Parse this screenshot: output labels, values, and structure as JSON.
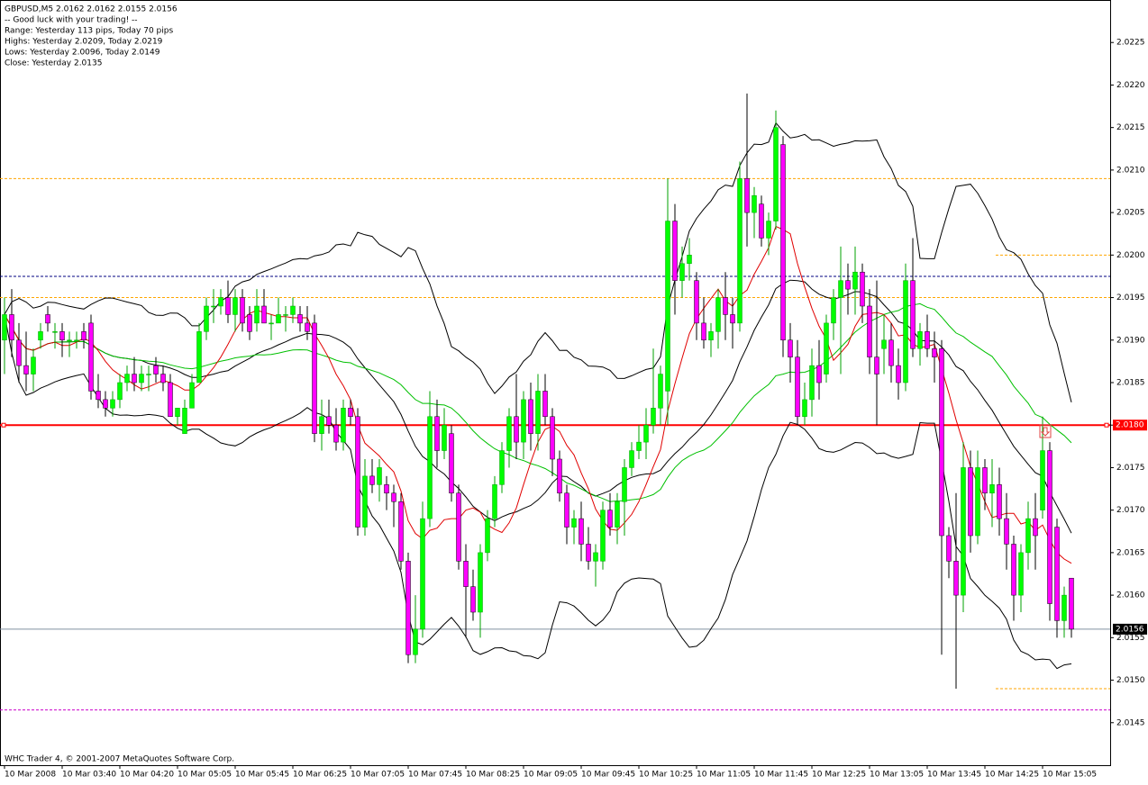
{
  "chart_data": {
    "type": "candlestick",
    "header": [
      "GBPUSD,M5  2.0162 2.0162 2.0155 2.0156",
      "-- Good luck with your trading! --",
      "Range: Yesterday 113 pips, Today 70 pips",
      "Highs: Yesterday 2.0209, Today 2.0219",
      "Lows:  Yesterday 2.0096, Today 2.0149",
      "Close: Yesterday 2.0135"
    ],
    "footer": "WHC Trader 4, © 2001-2007 MetaQuotes Software Corp.",
    "ylim": [
      2.014,
      2.023
    ],
    "yticks": [
      {
        "value": 2.0145,
        "label": "2.0145"
      },
      {
        "value": 2.015,
        "label": "2.0150"
      },
      {
        "value": 2.0155,
        "label": "2.0155"
      },
      {
        "value": 2.016,
        "label": "2.0160"
      },
      {
        "value": 2.0165,
        "label": "2.0165"
      },
      {
        "value": 2.017,
        "label": "2.0170"
      },
      {
        "value": 2.0175,
        "label": "2.0175"
      },
      {
        "value": 2.018,
        "label": "2.0180"
      },
      {
        "value": 2.0185,
        "label": "2.0185"
      },
      {
        "value": 2.019,
        "label": "2.0190"
      },
      {
        "value": 2.0195,
        "label": "2.0195"
      },
      {
        "value": 2.02,
        "label": "2.0200"
      },
      {
        "value": 2.0205,
        "label": "2.0205"
      },
      {
        "value": 2.021,
        "label": "2.0210"
      },
      {
        "value": 2.0215,
        "label": "2.0215"
      },
      {
        "value": 2.022,
        "label": "2.0220"
      },
      {
        "value": 2.0225,
        "label": "2.0225"
      }
    ],
    "levels": [
      {
        "value": 2.0209,
        "color": "#ffa500",
        "style": "dashed"
      },
      {
        "value": 2.0195,
        "color": "#ffa500",
        "style": "dashed"
      },
      {
        "value": 2.02,
        "color": "#ffa500",
        "style": "dashed-short"
      },
      {
        "value": 2.0149,
        "color": "#ffa500",
        "style": "dashed-short"
      },
      {
        "value": 2.01975,
        "color": "#000080",
        "style": "dashed"
      },
      {
        "value": 2.01465,
        "color": "#cc00cc",
        "style": "dashed"
      },
      {
        "value": 2.018,
        "color": "#ff0000",
        "style": "solid",
        "label": "2.0180"
      },
      {
        "value": 2.0156,
        "color": "#8090a0",
        "style": "thin",
        "label": "2.0156"
      }
    ],
    "bull_color": "#00ff00",
    "bear_color": "#ff00ff",
    "categories": [
      "10 Mar 2008",
      null,
      null,
      null,
      null,
      null,
      null,
      null,
      "10 Mar 03:40",
      null,
      null,
      null,
      null,
      null,
      null,
      null,
      "10 Mar 04:20",
      null,
      null,
      null,
      null,
      null,
      null,
      null,
      "10 Mar 05:05",
      null,
      null,
      null,
      null,
      null,
      null,
      null,
      "10 Mar 05:45",
      null,
      null,
      null,
      null,
      null,
      null,
      null,
      "10 Mar 06:25",
      null,
      null,
      null,
      null,
      null,
      null,
      null,
      "10 Mar 07:05",
      null,
      null,
      null,
      null,
      null,
      null,
      null,
      "10 Mar 07:45",
      null,
      null,
      null,
      null,
      null,
      null,
      null,
      "10 Mar 08:25",
      null,
      null,
      null,
      null,
      null,
      null,
      null,
      "10 Mar 09:05",
      null,
      null,
      null,
      null,
      null,
      null,
      null,
      "10 Mar 09:45",
      null,
      null,
      null,
      null,
      null,
      null,
      null,
      "10 Mar 10:25",
      null,
      null,
      null,
      null,
      null,
      null,
      null,
      "10 Mar 11:05",
      null,
      null,
      null,
      null,
      null,
      null,
      null,
      "10 Mar 11:45",
      null,
      null,
      null,
      null,
      null,
      null,
      null,
      "10 Mar 12:25",
      null,
      null,
      null,
      null,
      null,
      null,
      null,
      "10 Mar 13:05",
      null,
      null,
      null,
      null,
      null,
      null,
      null,
      "10 Mar 13:45",
      null,
      null,
      null,
      null,
      null,
      null,
      null,
      "10 Mar 14:25",
      null,
      null,
      null,
      null,
      null,
      null,
      null,
      "10 Mar 15:05",
      null,
      null,
      null,
      null
    ],
    "ohlc": [
      [
        2.019,
        2.0195,
        2.0186,
        2.0193
      ],
      [
        2.0193,
        2.0196,
        2.0188,
        2.019
      ],
      [
        2.019,
        2.0192,
        2.0185,
        2.0187
      ],
      [
        2.0187,
        2.0191,
        2.0184,
        2.0186
      ],
      [
        2.0186,
        2.0189,
        2.0184,
        2.0188
      ],
      [
        2.019,
        2.0192,
        2.0189,
        2.0191
      ],
      [
        2.0193,
        2.0194,
        2.0191,
        2.0192
      ],
      [
        2.0191,
        2.0192,
        2.0189,
        2.0191
      ],
      [
        2.0191,
        2.0192,
        2.0188,
        2.019
      ],
      [
        2.019,
        2.0191,
        2.0188,
        2.019
      ],
      [
        2.019,
        2.0191,
        2.0189,
        2.019
      ],
      [
        2.0191,
        2.0192,
        2.0189,
        2.019
      ],
      [
        2.0192,
        2.0193,
        2.0183,
        2.0184
      ],
      [
        2.0184,
        2.0186,
        2.0182,
        2.0183
      ],
      [
        2.0183,
        2.0184,
        2.0181,
        2.0182
      ],
      [
        2.0182,
        2.0184,
        2.0181,
        2.0183
      ],
      [
        2.0183,
        2.0186,
        2.0182,
        2.0185
      ],
      [
        2.0185,
        2.0187,
        2.0184,
        2.0186
      ],
      [
        2.0186,
        2.0188,
        2.0184,
        2.0185
      ],
      [
        2.0185,
        2.0187,
        2.0184,
        2.0186
      ],
      [
        2.0186,
        2.0187,
        2.0184,
        2.0186
      ],
      [
        2.0187,
        2.0188,
        2.0185,
        2.0186
      ],
      [
        2.0186,
        2.0187,
        2.0184,
        2.0185
      ],
      [
        2.0185,
        2.0186,
        2.0181,
        2.0181
      ],
      [
        2.0181,
        2.0182,
        2.018,
        2.0182
      ],
      [
        2.0179,
        2.0183,
        2.0179,
        2.0182
      ],
      [
        2.0182,
        2.0186,
        2.0182,
        2.0185
      ],
      [
        2.0185,
        2.0192,
        2.0185,
        2.0191
      ],
      [
        2.0191,
        2.0195,
        2.019,
        2.0194
      ],
      [
        2.0194,
        2.0196,
        2.0192,
        2.0194
      ],
      [
        2.0194,
        2.0196,
        2.0193,
        2.0195
      ],
      [
        2.0195,
        2.0197,
        2.0192,
        2.0193
      ],
      [
        2.0193,
        2.0196,
        2.0191,
        2.0195
      ],
      [
        2.0195,
        2.0196,
        2.0191,
        2.0192
      ],
      [
        2.0193,
        2.0194,
        2.019,
        2.0191
      ],
      [
        2.0192,
        2.0196,
        2.0191,
        2.0194
      ],
      [
        2.0194,
        2.0196,
        2.0192,
        2.0192
      ],
      [
        2.0192,
        2.0193,
        2.019,
        2.0192
      ],
      [
        2.0192,
        2.0195,
        2.0192,
        2.0193
      ],
      [
        2.0193,
        2.0194,
        2.0191,
        2.0193
      ],
      [
        2.0193,
        2.0195,
        2.0192,
        2.0194
      ],
      [
        2.0193,
        2.0194,
        2.0191,
        2.0192
      ],
      [
        2.0192,
        2.0194,
        2.019,
        2.0191
      ],
      [
        2.0192,
        2.0193,
        2.0178,
        2.0179
      ],
      [
        2.0179,
        2.0183,
        2.0177,
        2.0181
      ],
      [
        2.0181,
        2.0183,
        2.0179,
        2.018
      ],
      [
        2.018,
        2.0182,
        2.0177,
        2.0178
      ],
      [
        2.0178,
        2.0183,
        2.0177,
        2.0182
      ],
      [
        2.0182,
        2.0183,
        2.018,
        2.0181
      ],
      [
        2.0181,
        2.0182,
        2.0167,
        2.0168
      ],
      [
        2.0168,
        2.0176,
        2.0167,
        2.0174
      ],
      [
        2.0174,
        2.0176,
        2.0172,
        2.0173
      ],
      [
        2.0173,
        2.0176,
        2.0171,
        2.0175
      ],
      [
        2.0173,
        2.0174,
        2.017,
        2.0172
      ],
      [
        2.0172,
        2.0173,
        2.0168,
        2.0171
      ],
      [
        2.0171,
        2.0172,
        2.0163,
        2.0164
      ],
      [
        2.0164,
        2.0165,
        2.0152,
        2.0153
      ],
      [
        2.0153,
        2.016,
        2.0152,
        2.0156
      ],
      [
        2.0156,
        2.0171,
        2.0155,
        2.0169
      ],
      [
        2.0169,
        2.0184,
        2.0168,
        2.0181
      ],
      [
        2.0181,
        2.0183,
        2.0175,
        2.0177
      ],
      [
        2.0177,
        2.0182,
        2.0176,
        2.018
      ],
      [
        2.0179,
        2.018,
        2.0171,
        2.0172
      ],
      [
        2.0172,
        2.0173,
        2.0163,
        2.0164
      ],
      [
        2.0164,
        2.0166,
        2.0155,
        2.0161
      ],
      [
        2.0161,
        2.0163,
        2.0157,
        2.0158
      ],
      [
        2.0158,
        2.0166,
        2.0155,
        2.0165
      ],
      [
        2.0165,
        2.017,
        2.0164,
        2.0169
      ],
      [
        2.0169,
        2.0174,
        2.0168,
        2.0173
      ],
      [
        2.0173,
        2.0178,
        2.0172,
        2.0177
      ],
      [
        2.0177,
        2.0182,
        2.0175,
        2.0181
      ],
      [
        2.0181,
        2.0186,
        2.0176,
        2.0178
      ],
      [
        2.0178,
        2.0184,
        2.0176,
        2.0183
      ],
      [
        2.0183,
        2.0185,
        2.0177,
        2.0179
      ],
      [
        2.0179,
        2.0186,
        2.0177,
        2.0184
      ],
      [
        2.0184,
        2.0186,
        2.018,
        2.0181
      ],
      [
        2.0181,
        2.0182,
        2.0174,
        2.0176
      ],
      [
        2.0176,
        2.0177,
        2.0171,
        2.0172
      ],
      [
        2.0172,
        2.0173,
        2.0166,
        2.0168
      ],
      [
        2.0168,
        2.017,
        2.0166,
        2.0169
      ],
      [
        2.0169,
        2.0171,
        2.0164,
        2.0166
      ],
      [
        2.0166,
        2.0168,
        2.0163,
        2.0164
      ],
      [
        2.0164,
        2.0166,
        2.0161,
        2.0165
      ],
      [
        2.0164,
        2.0171,
        2.0163,
        2.017
      ],
      [
        2.017,
        2.0172,
        2.0167,
        2.0168
      ],
      [
        2.0168,
        2.0172,
        2.0166,
        2.0171
      ],
      [
        2.0171,
        2.0176,
        2.0167,
        2.0175
      ],
      [
        2.0175,
        2.0178,
        2.0174,
        2.0177
      ],
      [
        2.0177,
        2.018,
        2.0176,
        2.0178
      ],
      [
        2.0178,
        2.0182,
        2.0176,
        2.018
      ],
      [
        2.018,
        2.0189,
        2.0179,
        2.0182
      ],
      [
        2.0182,
        2.0187,
        2.018,
        2.0186
      ],
      [
        2.0184,
        2.0209,
        2.018,
        2.0204
      ],
      [
        2.0204,
        2.0206,
        2.0193,
        2.0197
      ],
      [
        2.0197,
        2.0201,
        2.0195,
        2.0199
      ],
      [
        2.0199,
        2.0202,
        2.0197,
        2.02
      ],
      [
        2.0197,
        2.0198,
        2.019,
        2.0192
      ],
      [
        2.0192,
        2.0195,
        2.0189,
        2.019
      ],
      [
        2.019,
        2.0192,
        2.0188,
        2.0191
      ],
      [
        2.0191,
        2.0196,
        2.0189,
        2.0195
      ],
      [
        2.0195,
        2.0198,
        2.019,
        2.0193
      ],
      [
        2.0193,
        2.0195,
        2.0189,
        2.0192
      ],
      [
        2.0192,
        2.0211,
        2.0191,
        2.0209
      ],
      [
        2.0209,
        2.0219,
        2.0201,
        2.0205
      ],
      [
        2.0205,
        2.0208,
        2.0202,
        2.0207
      ],
      [
        2.0206,
        2.0207,
        2.0201,
        2.0202
      ],
      [
        2.0202,
        2.0205,
        2.02,
        2.0204
      ],
      [
        2.0204,
        2.0217,
        2.0203,
        2.0215
      ],
      [
        2.0213,
        2.0214,
        2.0188,
        2.019
      ],
      [
        2.019,
        2.0192,
        2.0185,
        2.0188
      ],
      [
        2.0188,
        2.019,
        2.018,
        2.0181
      ],
      [
        2.0181,
        2.0185,
        2.018,
        2.0183
      ],
      [
        2.0183,
        2.0189,
        2.0181,
        2.0187
      ],
      [
        2.0187,
        2.019,
        2.0183,
        2.0185
      ],
      [
        2.0186,
        2.0193,
        2.0185,
        2.0192
      ],
      [
        2.0192,
        2.0196,
        2.019,
        2.0195
      ],
      [
        2.0195,
        2.0201,
        2.0186,
        2.0197
      ],
      [
        2.0197,
        2.0199,
        2.0193,
        2.0196
      ],
      [
        2.0196,
        2.0201,
        2.0193,
        2.0198
      ],
      [
        2.0198,
        2.0199,
        2.0192,
        2.0194
      ],
      [
        2.0194,
        2.0196,
        2.0186,
        2.0188
      ],
      [
        2.0188,
        2.0197,
        2.018,
        2.0186
      ],
      [
        2.0189,
        2.0193,
        2.0186,
        2.019
      ],
      [
        2.019,
        2.0192,
        2.0185,
        2.0187
      ],
      [
        2.0187,
        2.0189,
        2.0183,
        2.0185
      ],
      [
        2.0185,
        2.0199,
        2.0184,
        2.0197
      ],
      [
        2.0197,
        2.0202,
        2.0188,
        2.0189
      ],
      [
        2.0189,
        2.0192,
        2.0187,
        2.0191
      ],
      [
        2.0191,
        2.0193,
        2.0188,
        2.0189
      ],
      [
        2.0189,
        2.0191,
        2.0185,
        2.0188
      ],
      [
        2.0189,
        2.019,
        2.0153,
        2.0167
      ],
      [
        2.0167,
        2.0168,
        2.0162,
        2.0164
      ],
      [
        2.0164,
        2.0172,
        2.0149,
        2.016
      ],
      [
        2.016,
        2.0178,
        2.0158,
        2.0175
      ],
      [
        2.0175,
        2.0177,
        2.0165,
        2.0167
      ],
      [
        2.0167,
        2.0177,
        2.0166,
        2.0175
      ],
      [
        2.0175,
        2.0176,
        2.017,
        2.0172
      ],
      [
        2.0172,
        2.0176,
        2.0168,
        2.0173
      ],
      [
        2.0173,
        2.0175,
        2.0167,
        2.0169
      ],
      [
        2.0169,
        2.0172,
        2.0163,
        2.0166
      ],
      [
        2.0166,
        2.0167,
        2.0157,
        2.016
      ],
      [
        2.016,
        2.0166,
        2.0158,
        2.0165
      ],
      [
        2.0165,
        2.0171,
        2.0163,
        2.0169
      ],
      [
        2.0169,
        2.0172,
        2.0163,
        2.0167
      ],
      [
        2.017,
        2.0181,
        2.0169,
        2.0177
      ],
      [
        2.0177,
        2.0178,
        2.0157,
        2.0159
      ],
      [
        2.0168,
        2.0169,
        2.0155,
        2.0157
      ],
      [
        2.0157,
        2.0161,
        2.0155,
        2.016
      ],
      [
        2.0162,
        2.0162,
        2.0155,
        2.0156
      ]
    ]
  }
}
